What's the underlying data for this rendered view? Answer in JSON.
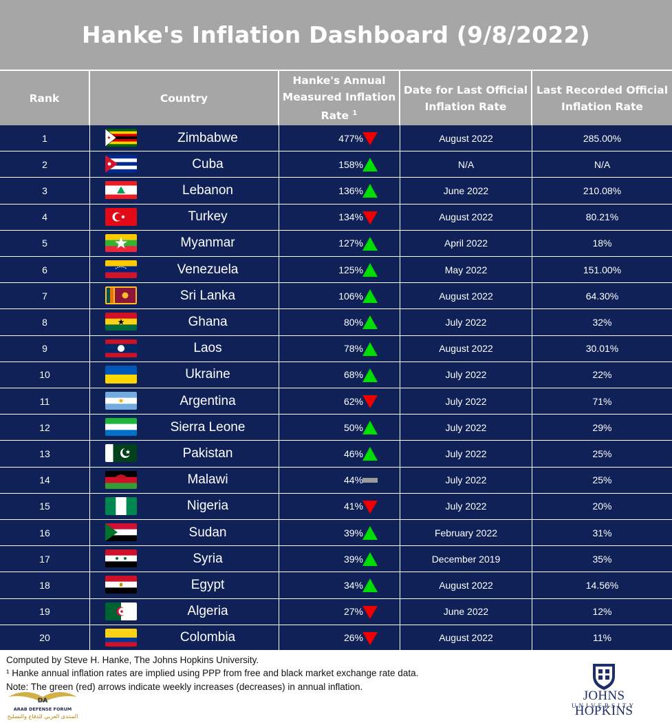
{
  "title": "Hanke's Inflation Dashboard (9/8/2022)",
  "columns": {
    "rank": "Rank",
    "country": "Country",
    "hanke_rate_line1": "Hanke's Annual",
    "hanke_rate_line2": "Measured Inflation",
    "hanke_rate_line3": "Rate",
    "hanke_rate_footnote": "1",
    "date_line1": "Date for Last Official",
    "date_line2": "Inflation Rate",
    "official_line1": "Last Recorded Official",
    "official_line2": "Inflation Rate"
  },
  "chart_data": {
    "type": "table",
    "title": "Hanke's Inflation Dashboard (9/8/2022)",
    "colors": {
      "header": "#a6a6a6",
      "row": "#0f2157",
      "up": "#00dd00",
      "down": "#ee0000",
      "flat": "#9a9a9a"
    },
    "rows": [
      {
        "rank": "1",
        "country": "Zimbabwe",
        "flag": "zimbabwe-flag-icon",
        "hanke_rate": "477%",
        "hanke_value": 477,
        "trend": "down",
        "date": "August 2022",
        "official": "285.00%"
      },
      {
        "rank": "2",
        "country": "Cuba",
        "flag": "cuba-flag-icon",
        "hanke_rate": "158%",
        "hanke_value": 158,
        "trend": "up",
        "date": "N/A",
        "official": "N/A"
      },
      {
        "rank": "3",
        "country": "Lebanon",
        "flag": "lebanon-flag-icon",
        "hanke_rate": "136%",
        "hanke_value": 136,
        "trend": "up",
        "date": "June 2022",
        "official": "210.08%"
      },
      {
        "rank": "4",
        "country": "Turkey",
        "flag": "turkey-flag-icon",
        "hanke_rate": "134%",
        "hanke_value": 134,
        "trend": "down",
        "date": "August 2022",
        "official": "80.21%"
      },
      {
        "rank": "5",
        "country": "Myanmar",
        "flag": "myanmar-flag-icon",
        "hanke_rate": "127%",
        "hanke_value": 127,
        "trend": "up",
        "date": "April 2022",
        "official": "18%"
      },
      {
        "rank": "6",
        "country": "Venezuela",
        "flag": "venezuela-flag-icon",
        "hanke_rate": "125%",
        "hanke_value": 125,
        "trend": "up",
        "date": "May 2022",
        "official": "151.00%"
      },
      {
        "rank": "7",
        "country": "Sri Lanka",
        "flag": "sri-lanka-flag-icon",
        "hanke_rate": "106%",
        "hanke_value": 106,
        "trend": "up",
        "date": "August 2022",
        "official": "64.30%"
      },
      {
        "rank": "8",
        "country": "Ghana",
        "flag": "ghana-flag-icon",
        "hanke_rate": "80%",
        "hanke_value": 80,
        "trend": "up",
        "date": "July 2022",
        "official": "32%"
      },
      {
        "rank": "9",
        "country": "Laos",
        "flag": "laos-flag-icon",
        "hanke_rate": "78%",
        "hanke_value": 78,
        "trend": "up",
        "date": "August 2022",
        "official": "30.01%"
      },
      {
        "rank": "10",
        "country": "Ukraine",
        "flag": "ukraine-flag-icon",
        "hanke_rate": "68%",
        "hanke_value": 68,
        "trend": "up",
        "date": "July 2022",
        "official": "22%"
      },
      {
        "rank": "11",
        "country": "Argentina",
        "flag": "argentina-flag-icon",
        "hanke_rate": "62%",
        "hanke_value": 62,
        "trend": "down",
        "date": "July 2022",
        "official": "71%"
      },
      {
        "rank": "12",
        "country": "Sierra Leone",
        "flag": "sierra-leone-flag-icon",
        "hanke_rate": "50%",
        "hanke_value": 50,
        "trend": "up",
        "date": "July 2022",
        "official": "29%"
      },
      {
        "rank": "13",
        "country": "Pakistan",
        "flag": "pakistan-flag-icon",
        "hanke_rate": "46%",
        "hanke_value": 46,
        "trend": "up",
        "date": "July 2022",
        "official": "25%"
      },
      {
        "rank": "14",
        "country": "Malawi",
        "flag": "malawi-flag-icon",
        "hanke_rate": "44%",
        "hanke_value": 44,
        "trend": "flat",
        "date": "July 2022",
        "official": "25%"
      },
      {
        "rank": "15",
        "country": "Nigeria",
        "flag": "nigeria-flag-icon",
        "hanke_rate": "41%",
        "hanke_value": 41,
        "trend": "down",
        "date": "July 2022",
        "official": "20%"
      },
      {
        "rank": "16",
        "country": "Sudan",
        "flag": "sudan-flag-icon",
        "hanke_rate": "39%",
        "hanke_value": 39,
        "trend": "up",
        "date": "February 2022",
        "official": "31%"
      },
      {
        "rank": "17",
        "country": "Syria",
        "flag": "syria-flag-icon",
        "hanke_rate": "39%",
        "hanke_value": 39,
        "trend": "up",
        "date": "December 2019",
        "official": "35%"
      },
      {
        "rank": "18",
        "country": "Egypt",
        "flag": "egypt-flag-icon",
        "hanke_rate": "34%",
        "hanke_value": 34,
        "trend": "up",
        "date": "August 2022",
        "official": "14.56%"
      },
      {
        "rank": "19",
        "country": "Algeria",
        "flag": "algeria-flag-icon",
        "hanke_rate": "27%",
        "hanke_value": 27,
        "trend": "down",
        "date": "June 2022",
        "official": "12%"
      },
      {
        "rank": "20",
        "country": "Colombia",
        "flag": "colombia-flag-icon",
        "hanke_rate": "26%",
        "hanke_value": 26,
        "trend": "down",
        "date": "August 2022",
        "official": "11%"
      }
    ]
  },
  "footer": {
    "line1": "Computed by Steve H. Hanke, The Johns Hopkins University.",
    "line2": "¹ Hanke annual inflation rates are implied using PPP from free and black market exchange rate data.",
    "line3": "Note: The green (red) arrows indicate weekly increases (decreases) in annual inflation."
  },
  "logo": {
    "name": "JOHNS HOPKINS",
    "sub": "UNIVERSITY"
  },
  "watermark": {
    "line1": "ARAB DEFENSE FORUM",
    "line2": "المنتدى العربي للدفاع والتسليح"
  }
}
